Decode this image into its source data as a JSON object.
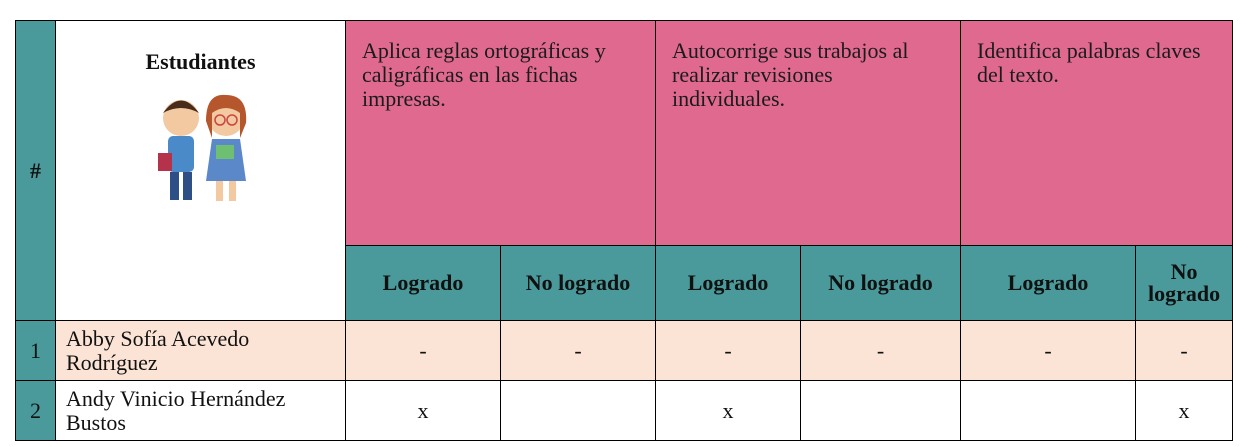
{
  "table": {
    "header": {
      "number": "#",
      "students": "Estudiantes",
      "criteria": [
        "Aplica reglas ortográficas y caligráficas en las fichas impresas.",
        "Autocorrige sus trabajos al realizar revisiones individuales.",
        "Identifica palabras claves del texto."
      ],
      "sub": [
        "Logrado",
        "No logrado",
        "Logrado",
        "No logrado",
        "Logrado",
        "No logrado"
      ]
    },
    "rows": [
      [
        "1",
        "Abby Sofía Acevedo Rodríguez",
        "-",
        "-",
        "-",
        "-",
        "-",
        "-"
      ],
      [
        "2",
        "Andy Vinicio Hernández Bustos",
        "x",
        null,
        "x",
        null,
        null,
        "x"
      ]
    ]
  }
}
